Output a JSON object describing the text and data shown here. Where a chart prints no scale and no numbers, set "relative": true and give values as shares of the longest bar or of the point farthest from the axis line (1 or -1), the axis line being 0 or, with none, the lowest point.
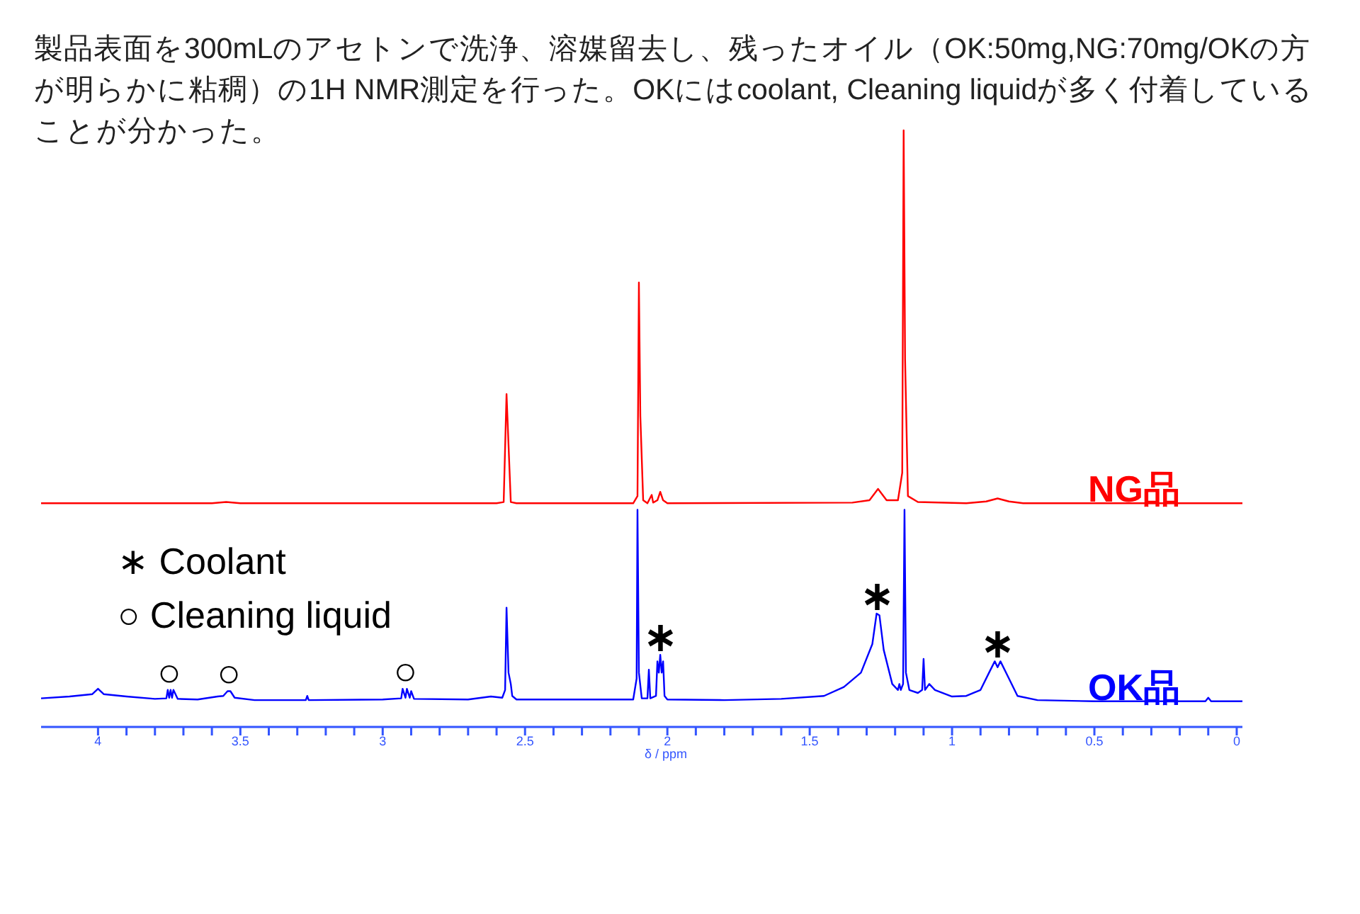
{
  "chart_data": {
    "type": "line",
    "relative": true,
    "title": "製品表面を300mLのアセトンで洗浄、溶媒留去し、残ったオイル（OK:50mg,NG:70mg/OKの方が明らかに粘稠）の1H NMR測定を行った。OKにはcoolant, Cleaning liquidが多く付着していることが分かった。",
    "xlabel": "δ / ppm",
    "xlim": [
      4.2,
      -0.02
    ],
    "xticks": [
      4,
      {
        "value": 3.9,
        "label": null
      },
      {
        "value": 3.8,
        "label": null
      },
      {
        "value": 3.7,
        "label": null
      },
      {
        "value": 3.6,
        "label": null
      },
      3.5,
      {
        "value": 3.4,
        "label": null
      },
      {
        "value": 3.3,
        "label": null
      },
      {
        "value": 3.2,
        "label": null
      },
      {
        "value": 3.1,
        "label": null
      },
      3,
      {
        "value": 2.9,
        "label": null
      },
      {
        "value": 2.8,
        "label": null
      },
      {
        "value": 2.7,
        "label": null
      },
      {
        "value": 2.6,
        "label": null
      },
      2.5,
      {
        "value": 2.4,
        "label": null
      },
      {
        "value": 2.3,
        "label": null
      },
      {
        "value": 2.2,
        "label": null
      },
      {
        "value": 2.1,
        "label": null
      },
      2,
      {
        "value": 1.9,
        "label": null
      },
      {
        "value": 1.8,
        "label": null
      },
      {
        "value": 1.7,
        "label": null
      },
      {
        "value": 1.6,
        "label": null
      },
      1.5,
      {
        "value": 1.4,
        "label": null
      },
      {
        "value": 1.3,
        "label": null
      },
      {
        "value": 1.2,
        "label": null
      },
      {
        "value": 1.1,
        "label": null
      },
      1,
      {
        "value": 0.9,
        "label": null
      },
      {
        "value": 0.8,
        "label": null
      },
      {
        "value": 0.7,
        "label": null
      },
      {
        "value": 0.6,
        "label": null
      },
      0.5,
      {
        "value": 0.4,
        "label": null
      },
      {
        "value": 0.3,
        "label": null
      },
      {
        "value": 0.2,
        "label": null
      },
      {
        "value": 0.1,
        "label": null
      },
      0
    ],
    "tick_labels": "x",
    "grid": false,
    "legend": false,
    "series": [
      {
        "name": "NG品",
        "color": "#ff0000",
        "x": [
          4.2,
          3.6,
          3.55,
          3.5,
          2.6,
          2.575,
          2.565,
          2.558,
          2.55,
          2.53,
          2.12,
          2.105,
          2.1,
          2.095,
          2.085,
          2.07,
          2.055,
          2.05,
          2.035,
          2.025,
          2.015,
          2.0,
          1.35,
          1.29,
          1.26,
          1.23,
          1.19,
          1.175,
          1.17,
          1.165,
          1.155,
          1.12,
          0.95,
          0.88,
          0.84,
          0.8,
          0.75,
          -0.02
        ],
        "values": [
          0.375,
          0.375,
          0.377,
          0.375,
          0.375,
          0.377,
          0.558,
          0.473,
          0.377,
          0.375,
          0.375,
          0.387,
          0.745,
          0.521,
          0.38,
          0.375,
          0.389,
          0.376,
          0.38,
          0.394,
          0.38,
          0.375,
          0.376,
          0.38,
          0.399,
          0.38,
          0.38,
          0.426,
          1.0,
          0.617,
          0.387,
          0.377,
          0.375,
          0.378,
          0.383,
          0.378,
          0.375,
          0.375
        ]
      },
      {
        "name": "OK品",
        "color": "#0000ff",
        "x": [
          4.2,
          4.1,
          4.02,
          4.0,
          3.98,
          3.9,
          3.8,
          3.76,
          3.755,
          3.75,
          3.745,
          3.74,
          3.735,
          3.72,
          3.65,
          3.58,
          3.56,
          3.545,
          3.535,
          3.52,
          3.45,
          3.27,
          3.265,
          3.26,
          3.0,
          2.935,
          2.93,
          2.92,
          2.915,
          2.905,
          2.9,
          2.89,
          2.7,
          2.62,
          2.58,
          2.57,
          2.565,
          2.558,
          2.55,
          2.545,
          2.53,
          2.12,
          2.108,
          2.105,
          2.1,
          2.09,
          2.07,
          2.065,
          2.06,
          2.04,
          2.035,
          2.03,
          2.025,
          2.02,
          2.015,
          2.01,
          2.0,
          1.8,
          1.6,
          1.45,
          1.38,
          1.32,
          1.28,
          1.265,
          1.255,
          1.24,
          1.21,
          1.19,
          1.185,
          1.18,
          1.172,
          1.167,
          1.162,
          1.15,
          1.12,
          1.105,
          1.1,
          1.095,
          1.08,
          1.06,
          1.0,
          0.95,
          0.92,
          0.9,
          0.87,
          0.85,
          0.84,
          0.83,
          0.8,
          0.77,
          0.7,
          0.5,
          0.11,
          0.1,
          0.09,
          -0.02
        ],
        "values": [
          0.048,
          0.051,
          0.055,
          0.064,
          0.055,
          0.051,
          0.047,
          0.048,
          0.062,
          0.049,
          0.062,
          0.049,
          0.062,
          0.047,
          0.046,
          0.051,
          0.052,
          0.06,
          0.06,
          0.049,
          0.045,
          0.045,
          0.052,
          0.045,
          0.046,
          0.048,
          0.064,
          0.049,
          0.064,
          0.049,
          0.06,
          0.047,
          0.046,
          0.051,
          0.049,
          0.062,
          0.2,
          0.091,
          0.072,
          0.052,
          0.046,
          0.046,
          0.081,
          0.364,
          0.091,
          0.048,
          0.048,
          0.096,
          0.048,
          0.052,
          0.11,
          0.091,
          0.121,
          0.091,
          0.11,
          0.052,
          0.046,
          0.045,
          0.047,
          0.052,
          0.067,
          0.091,
          0.139,
          0.19,
          0.187,
          0.129,
          0.072,
          0.062,
          0.072,
          0.062,
          0.072,
          0.364,
          0.091,
          0.062,
          0.057,
          0.062,
          0.114,
          0.062,
          0.072,
          0.062,
          0.051,
          0.052,
          0.058,
          0.062,
          0.091,
          0.11,
          0.1,
          0.11,
          0.081,
          0.052,
          0.045,
          0.043,
          0.043,
          0.049,
          0.043,
          0.043
        ]
      }
    ],
    "annotations": [
      "∗ Coolant",
      "○ Cleaning liquid",
      {
        "text": "∗",
        "x": 2.025,
        "y": 0.121
      },
      {
        "text": "∗",
        "x": 1.265,
        "y": 0.19
      },
      {
        "text": "∗",
        "x": 0.84,
        "y": 0.11
      },
      {
        "text": "○",
        "x": 3.75,
        "y": 0.062
      },
      {
        "text": "○",
        "x": 3.54,
        "y": 0.06
      },
      {
        "text": "○",
        "x": 2.92,
        "y": 0.064
      }
    ]
  }
}
